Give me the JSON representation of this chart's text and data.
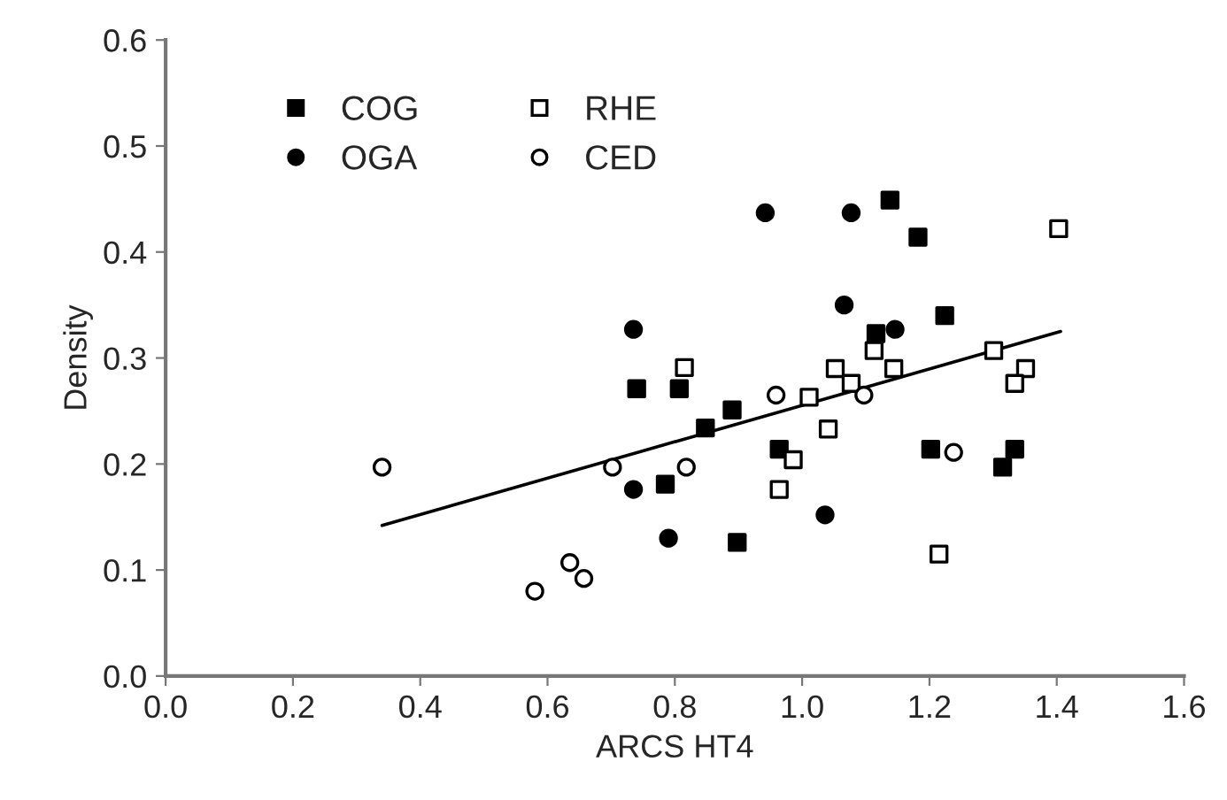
{
  "chart_data": {
    "type": "scatter",
    "xlabel": "ARCS HT4",
    "ylabel": "Density",
    "xlim": [
      0.0,
      1.6
    ],
    "xticks": [
      {
        "value": 0,
        "label": "0.0"
      },
      0.2,
      0.4,
      0.6,
      0.8,
      {
        "value": 1,
        "label": "1.0"
      },
      1.2,
      1.4,
      1.6
    ],
    "ylim": [
      0.0,
      0.6
    ],
    "yticks": [
      {
        "value": 0,
        "label": "0.0"
      },
      0.1,
      0.2,
      0.3,
      0.4,
      0.5,
      0.6
    ],
    "grid": false,
    "legend": "top left",
    "series": [
      {
        "name": "COG",
        "color": "#000000",
        "marker": "square",
        "x": [
          0.74,
          0.807,
          0.89,
          0.848,
          0.785,
          0.898,
          1.138,
          1.182,
          1.224,
          1.116,
          0.964,
          1.202,
          1.334,
          1.315
        ],
        "values": [
          0.271,
          0.271,
          0.251,
          0.234,
          0.181,
          0.126,
          0.449,
          0.414,
          0.34,
          0.323,
          0.214,
          0.214,
          0.214,
          0.197
        ]
      },
      {
        "name": "OGA",
        "color": "#000000",
        "marker": "circle",
        "x": [
          0.735,
          0.735,
          0.79,
          0.942,
          1.077,
          1.066,
          1.146,
          1.036
        ],
        "values": [
          0.327,
          0.176,
          0.13,
          0.437,
          0.437,
          0.35,
          0.327,
          0.152
        ]
      },
      {
        "name": "RHE",
        "color": "#ffffff",
        "marker": "square",
        "x": [
          0.815,
          1.403,
          1.113,
          1.052,
          1.144,
          1.077,
          1.301,
          1.351,
          1.334,
          1.011,
          1.041,
          0.986,
          0.964,
          1.215
        ],
        "values": [
          0.291,
          0.422,
          0.307,
          0.29,
          0.29,
          0.276,
          0.307,
          0.29,
          0.276,
          0.263,
          0.233,
          0.204,
          0.176,
          0.115
        ]
      },
      {
        "name": "CED",
        "color": "#ffffff",
        "marker": "circle",
        "x": [
          0.34,
          0.702,
          0.818,
          0.635,
          0.657,
          0.58,
          0.959,
          1.097,
          1.238
        ],
        "values": [
          0.197,
          0.197,
          0.197,
          0.107,
          0.092,
          0.08,
          0.265,
          0.265,
          0.211
        ]
      },
      {
        "type": "line",
        "color": "#000000",
        "marker": "none",
        "line_style": "solid",
        "x": [
          0.34,
          1.406
        ],
        "values": [
          0.142,
          0.325
        ]
      }
    ]
  }
}
